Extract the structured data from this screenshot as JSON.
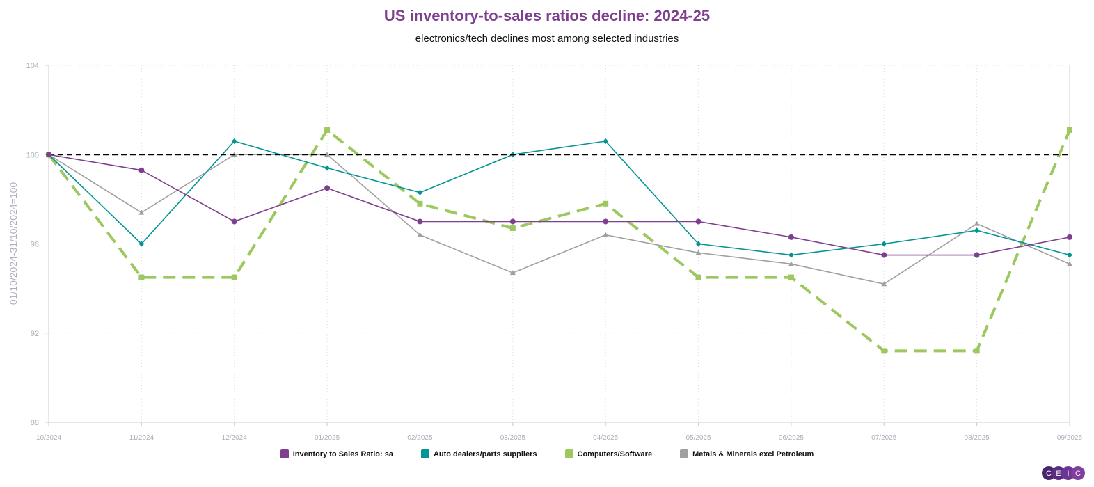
{
  "chart_data": {
    "type": "line",
    "title": "US inventory-to-sales ratios decline: 2024-25",
    "subtitle": "electronics/tech declines most among selected industries",
    "ylabel": "01/10/2024-31/10/2024=100",
    "xlabel": "",
    "ylim": [
      88,
      104
    ],
    "yticks": [
      88,
      92,
      96,
      100,
      104
    ],
    "grid": true,
    "legend_position": "bottom",
    "reference_line": {
      "y": 100,
      "color": "#000000",
      "style": "dashed"
    },
    "x": [
      "10/2024",
      "11/2024",
      "12/2024",
      "01/2025",
      "02/2025",
      "03/2025",
      "04/2025",
      "05/2025",
      "06/2025",
      "07/2025",
      "08/2025",
      "09/2025"
    ],
    "series": [
      {
        "name": "Inventory to Sales Ratio: sa",
        "color": "#7f3f8f",
        "marker": "circle",
        "style": "solid",
        "values": [
          100,
          99.3,
          97.0,
          98.5,
          97.0,
          97.0,
          97.0,
          97.0,
          96.3,
          95.5,
          95.5,
          96.3
        ]
      },
      {
        "name": "Auto dealers/parts suppliers",
        "color": "#009593",
        "marker": "diamond",
        "style": "solid",
        "values": [
          100,
          96.0,
          100.6,
          99.4,
          98.3,
          100,
          100.6,
          96.0,
          95.5,
          96.0,
          96.6,
          95.5
        ]
      },
      {
        "name": "Computers/Software",
        "color": "#9dc75f",
        "marker": "square",
        "style": "dashed",
        "values": [
          100,
          94.5,
          94.5,
          101.1,
          97.8,
          96.7,
          97.8,
          94.5,
          94.5,
          91.2,
          91.2,
          101.1
        ]
      },
      {
        "name": "Metals & Minerals excl Petroleum",
        "color": "#a0a0a0",
        "marker": "triangle",
        "style": "solid",
        "values": [
          100,
          97.4,
          100,
          100,
          96.4,
          94.7,
          96.4,
          95.6,
          95.1,
          94.2,
          96.9,
          95.1
        ]
      }
    ]
  },
  "logo": {
    "text": "CEIC",
    "letters": [
      "C",
      "E",
      "I",
      "C"
    ]
  }
}
